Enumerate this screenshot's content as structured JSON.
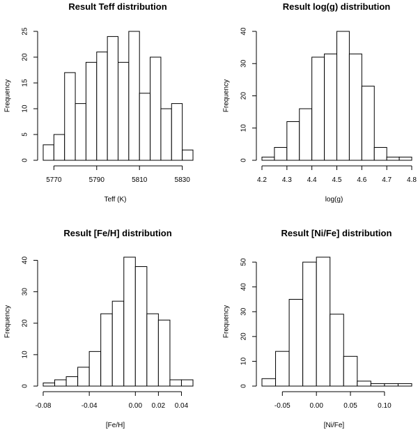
{
  "chart_data": [
    {
      "type": "bar",
      "title": "Result Teff distribution",
      "xlabel": "Teff (K)",
      "ylabel": "Frequency",
      "bin_edges": [
        5765,
        5770,
        5775,
        5780,
        5785,
        5790,
        5795,
        5800,
        5805,
        5810,
        5815,
        5820,
        5825,
        5830,
        5835
      ],
      "values": [
        3,
        5,
        17,
        11,
        19,
        21,
        24,
        19,
        25,
        13,
        20,
        10,
        11,
        2
      ],
      "xticks": [
        5770,
        5790,
        5810,
        5830
      ],
      "xtick_labels": [
        "5770",
        "5790",
        "5810",
        "5830"
      ],
      "yticks": [
        0,
        5,
        10,
        15,
        20,
        25
      ],
      "ytick_labels": [
        "0",
        "5",
        "10",
        "15",
        "20",
        "25"
      ],
      "ylim": [
        0,
        25
      ]
    },
    {
      "type": "bar",
      "title": "Result log(g) distribution",
      "xlabel": "log(g)",
      "ylabel": "Frequency",
      "bin_edges": [
        4.2,
        4.25,
        4.3,
        4.35,
        4.4,
        4.45,
        4.5,
        4.55,
        4.6,
        4.65,
        4.7,
        4.75,
        4.8
      ],
      "values": [
        1,
        4,
        12,
        16,
        32,
        33,
        40,
        33,
        23,
        4,
        1,
        1
      ],
      "xticks": [
        4.2,
        4.3,
        4.4,
        4.5,
        4.6,
        4.7,
        4.8
      ],
      "xtick_labels": [
        "4.2",
        "4.3",
        "4.4",
        "4.5",
        "4.6",
        "4.7",
        "4.8"
      ],
      "yticks": [
        0,
        10,
        20,
        30,
        40
      ],
      "ytick_labels": [
        "0",
        "10",
        "20",
        "30",
        "40"
      ],
      "ylim": [
        0,
        40
      ]
    },
    {
      "type": "bar",
      "title": "Result [Fe/H] distribution",
      "xlabel": "[Fe/H]",
      "ylabel": "Frequency",
      "bin_edges": [
        -0.08,
        -0.07,
        -0.06,
        -0.05,
        -0.04,
        -0.03,
        -0.02,
        -0.01,
        0.0,
        0.01,
        0.02,
        0.03,
        0.04,
        0.05
      ],
      "values": [
        1,
        2,
        3,
        6,
        11,
        23,
        27,
        41,
        38,
        23,
        21,
        2,
        2
      ],
      "xticks": [
        -0.08,
        -0.04,
        0.0,
        0.02,
        0.04
      ],
      "xtick_labels": [
        "-0.08",
        "-0.04",
        "0.00",
        "0.02",
        "0.04"
      ],
      "yticks": [
        0,
        10,
        20,
        30,
        40
      ],
      "ytick_labels": [
        "0",
        "10",
        "20",
        "30",
        "40"
      ],
      "ylim": [
        0,
        41
      ]
    },
    {
      "type": "bar",
      "title": "Result [Ni/Fe] distribution",
      "xlabel": "[Ni/Fe]",
      "ylabel": "Frequency",
      "bin_edges": [
        -0.08,
        -0.06,
        -0.04,
        -0.02,
        0.0,
        0.02,
        0.04,
        0.06,
        0.08,
        0.1,
        0.12,
        0.14
      ],
      "values": [
        3,
        14,
        35,
        50,
        52,
        29,
        12,
        2,
        1,
        1,
        1
      ],
      "xticks": [
        -0.05,
        0.0,
        0.05,
        0.1
      ],
      "xtick_labels": [
        "-0.05",
        "0.00",
        "0.05",
        "0.10"
      ],
      "yticks": [
        0,
        10,
        20,
        30,
        40,
        50
      ],
      "ytick_labels": [
        "0",
        "10",
        "20",
        "30",
        "40",
        "50"
      ],
      "ylim": [
        0,
        52
      ]
    }
  ]
}
